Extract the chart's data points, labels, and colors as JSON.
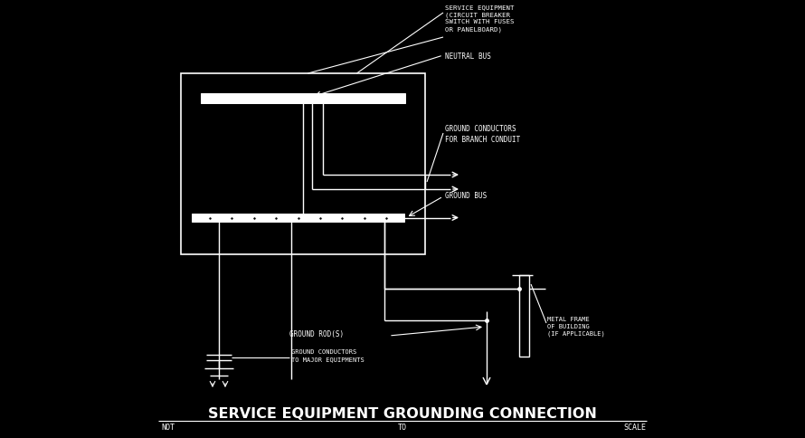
{
  "bg_color": "#000000",
  "line_color": "#ffffff",
  "text_color": "#ffffff",
  "fig_width": 8.9,
  "fig_height": 4.85,
  "dpi": 100,
  "title": "SERVICE EQUIPMENT GROUNDING CONNECTION",
  "sub_left": "NOT",
  "sub_mid": "TO",
  "sub_right": "SCALE",
  "label_service_eq": "SERVICE EQUIPMENT\n(CIRCUIT BREAKER\nSWITCH WITH FUSES\nOR PANELBOARD)",
  "label_neutral_bus": "NEUTRAL BUS",
  "label_gnd_conductors_branch": "GROUND CONDUCTORS\nFOR BRANCH CONDUIT",
  "label_gnd_bus": "GROUND BUS",
  "label_gnd_rod": "GROUND ROD(S)",
  "label_metal_frame": "METAL FRAME\nOF BUILDING\n(IF APPLICABLE)",
  "label_gnd_major": "GROUND CONDUCTORS\nTO MAJOR EQUIPMENTS"
}
